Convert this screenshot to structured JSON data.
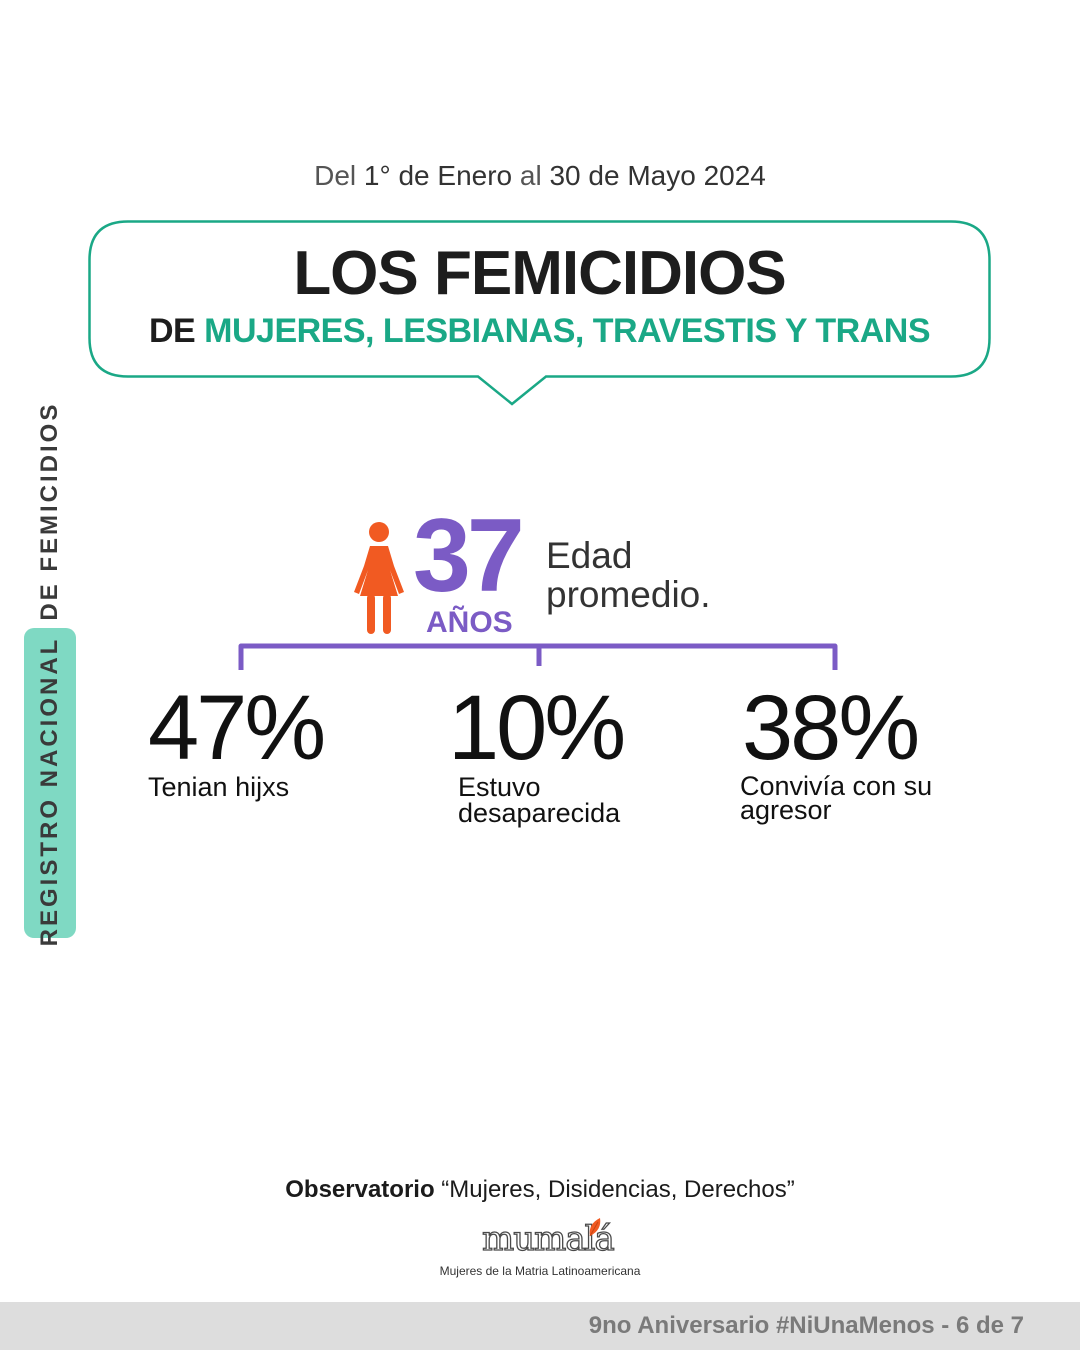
{
  "header": {
    "date_from_prefix": "Del",
    "date_from": "1° de Enero",
    "date_mid": "al",
    "date_to": "30 de Mayo 2024",
    "title": "LOS FEMICIDIOS",
    "subtitle_prefix": "DE",
    "subtitle_highlight": "MUJERES, LESBIANAS, TRAVESTIS Y TRANS"
  },
  "side_label": {
    "part1": "REGISTRO NACIONAL",
    "part2": "DE FEMICIDIOS"
  },
  "age": {
    "value": "37",
    "unit": "AÑOS",
    "label": "Edad promedio."
  },
  "stats": [
    {
      "value": "47%",
      "label": "Tenian hijxs"
    },
    {
      "value": "10%",
      "label": "Estuvo\ndesaparecida"
    },
    {
      "value": "38%",
      "label": "Convivía con su\nagresor"
    }
  ],
  "footer": {
    "observatorio_bold": "Observatorio",
    "observatorio_rest": "“Mujeres, Disidencias, Derechos”",
    "logo_text": "mumalá",
    "logo_caption": "Mujeres de la Matria Latinoamericana",
    "bar_text": "9no Aniversario #NiUnaMenos - 6 de 7"
  },
  "colors": {
    "green": "#1aa886",
    "purple": "#7b5bc5",
    "orange": "#f15a22",
    "side_tab": "#7fd9c3",
    "footer_bar": "#dddddd"
  },
  "icons": [
    "woman-figure-icon",
    "leaf-icon"
  ]
}
